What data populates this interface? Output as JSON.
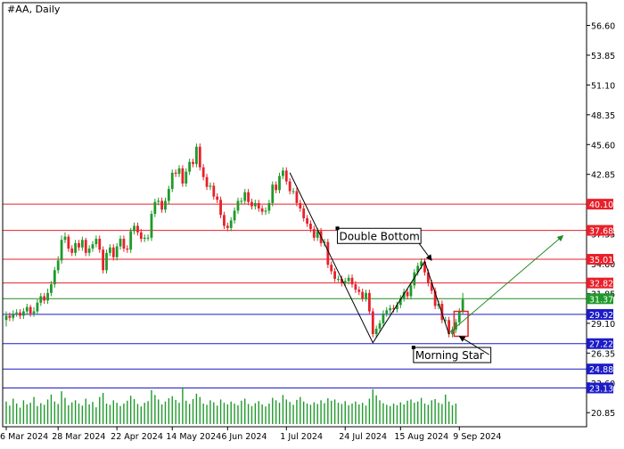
{
  "chart_data": {
    "type": "candlestick",
    "title": "#AA, Daily",
    "symbol": "#AA",
    "timeframe": "Daily",
    "ylim": [
      19.55,
      58.7
    ],
    "price_ticks": [
      "56.60",
      "53.85",
      "51.10",
      "48.35",
      "45.60",
      "42.85",
      "37.35",
      "34.60",
      "31.85",
      "29.10",
      "26.35",
      "23.60",
      "20.85"
    ],
    "date_ticks": [
      {
        "label": "6 Mar 2024",
        "bar": 0
      },
      {
        "label": "28 Mar 2024",
        "bar": 15
      },
      {
        "label": "22 Apr 2024",
        "bar": 32
      },
      {
        "label": "14 May 2024",
        "bar": 48
      },
      {
        "label": "6 Jun 2024",
        "bar": 64
      },
      {
        "label": "1 Jul 2024",
        "bar": 81
      },
      {
        "label": "24 Jul 2024",
        "bar": 98
      },
      {
        "label": "15 Aug 2024",
        "bar": 114
      },
      {
        "label": "9 Sep 2024",
        "bar": 131
      }
    ],
    "levels": [
      {
        "price": 40.1,
        "label": "40.10",
        "color": "#e8202a",
        "badge": "#e8202a"
      },
      {
        "price": 37.68,
        "label": "37.68",
        "color": "#e8202a",
        "badge": "#e8202a"
      },
      {
        "price": 35.01,
        "label": "35.01",
        "color": "#e8202a",
        "badge": "#e8202a"
      },
      {
        "price": 32.82,
        "label": "32.82",
        "color": "#e8202a",
        "badge": "#e8202a"
      },
      {
        "price": 31.37,
        "label": "31.37",
        "color": "#228b22",
        "badge": "#1f9a2a"
      },
      {
        "price": 29.92,
        "label": "29.92",
        "color": "#1c1cc8",
        "badge": "#1c1cc8"
      },
      {
        "price": 27.22,
        "label": "27.22",
        "color": "#1c1cc8",
        "badge": "#1c1cc8"
      },
      {
        "price": 24.88,
        "label": "24.88",
        "color": "#1c1cc8",
        "badge": "#1c1cc8"
      },
      {
        "price": 23.13,
        "label": "23.13",
        "color": "#1c1cc8",
        "badge": "#1c1cc8"
      }
    ],
    "pattern_line": [
      {
        "bar": 82,
        "price": 43.0
      },
      {
        "bar": 106,
        "price": 27.3
      },
      {
        "bar": 121,
        "price": 34.8
      },
      {
        "bar": 128,
        "price": 28.1
      }
    ],
    "projection": {
      "from": {
        "bar": 128,
        "price": 28.2
      },
      "to": {
        "bar": 161,
        "price": 37.2
      },
      "color": "#228b22"
    },
    "annotations": [
      {
        "text": "Double Bottom",
        "bar": 96,
        "price": 36.8,
        "arrow_to": {
          "bar": 123,
          "price": 34.9
        }
      },
      {
        "text": "Morning Star",
        "bar": 118,
        "price": 25.8,
        "arrow_to": {
          "bar": 131,
          "price": 27.9
        }
      }
    ],
    "highlight_box": {
      "bar_from": 130,
      "bar_to": 133,
      "price_low": 27.9,
      "price_high": 30.2,
      "color": "#e8202a"
    },
    "colors": {
      "bull": "#1f9a2a",
      "bear": "#e8202a",
      "volume": "#1f9a2a",
      "text": "#000000"
    },
    "series": [
      {
        "name": "price",
        "open": [
          29.4,
          29.8,
          29.6,
          30.0,
          30.1,
          29.8,
          30.2,
          30.6,
          30.0,
          30.2,
          31.0,
          31.6,
          31.2,
          31.9,
          32.7,
          34.0,
          34.9,
          36.8,
          37.1,
          36.0,
          35.6,
          36.5,
          36.1,
          36.8,
          35.6,
          36.0,
          36.4,
          36.9,
          35.9,
          34.0,
          35.6,
          36.1,
          35.2,
          36.2,
          36.9,
          36.0,
          35.9,
          37.6,
          38.1,
          37.5,
          36.9,
          37.0,
          37.0,
          39.2,
          40.3,
          40.4,
          39.6,
          40.4,
          41.5,
          43.0,
          42.9,
          43.4,
          42.0,
          43.1,
          44.0,
          43.8,
          45.4,
          43.5,
          42.6,
          41.7,
          41.8,
          40.8,
          40.5,
          39.1,
          38.1,
          37.9,
          38.6,
          39.5,
          40.4,
          40.4,
          41.2,
          40.3,
          39.9,
          40.2,
          39.7,
          39.4,
          39.5,
          40.2,
          41.9,
          41.4,
          42.7,
          43.2,
          42.2,
          41.3,
          41.3,
          40.2,
          39.7,
          38.8,
          38.3,
          37.8,
          37.0,
          37.6,
          36.5,
          36.6,
          34.5,
          33.9,
          33.2,
          33.2,
          32.8,
          33.0,
          33.3,
          32.7,
          32.2,
          32.0,
          31.4,
          31.9,
          30.2,
          28.1,
          28.6,
          29.1,
          30.0,
          30.3,
          30.5,
          30.4,
          30.8,
          31.4,
          32.0,
          31.6,
          32.6,
          33.8,
          34.4,
          34.8,
          33.8,
          32.8,
          32.1,
          30.7,
          30.9,
          29.4,
          29.4,
          28.1,
          28.5,
          29.2,
          30.2
        ],
        "close": [
          29.8,
          29.6,
          30.0,
          30.1,
          29.8,
          30.2,
          30.6,
          30.0,
          30.2,
          31.0,
          31.6,
          31.2,
          31.9,
          32.7,
          34.0,
          34.9,
          36.8,
          37.1,
          36.0,
          35.6,
          36.5,
          36.1,
          36.8,
          35.6,
          36.0,
          36.4,
          36.9,
          35.9,
          34.0,
          35.6,
          36.1,
          35.2,
          36.2,
          36.9,
          36.0,
          35.9,
          37.6,
          38.1,
          37.5,
          36.9,
          37.0,
          37.0,
          39.2,
          40.3,
          40.4,
          39.6,
          40.4,
          41.5,
          43.0,
          42.9,
          43.4,
          42.0,
          43.1,
          44.0,
          43.8,
          45.4,
          43.5,
          42.6,
          41.7,
          41.8,
          40.8,
          40.5,
          39.1,
          38.1,
          37.9,
          38.6,
          39.5,
          40.4,
          40.4,
          41.2,
          40.3,
          39.9,
          40.2,
          39.7,
          39.4,
          39.5,
          40.2,
          41.9,
          41.4,
          42.7,
          43.2,
          42.2,
          41.3,
          41.3,
          40.2,
          39.7,
          38.8,
          38.3,
          37.8,
          37.0,
          37.6,
          36.5,
          36.6,
          34.5,
          33.9,
          33.2,
          33.2,
          32.8,
          33.0,
          33.3,
          32.7,
          32.2,
          32.0,
          31.4,
          31.9,
          30.2,
          28.1,
          28.6,
          29.1,
          30.0,
          30.3,
          30.5,
          30.4,
          30.8,
          31.4,
          32.0,
          31.6,
          32.6,
          33.8,
          34.4,
          34.8,
          33.8,
          32.8,
          32.1,
          30.7,
          30.9,
          29.4,
          29.4,
          28.1,
          28.5,
          29.2,
          30.2,
          31.3
        ],
        "high": [
          30.2,
          30.1,
          30.3,
          30.4,
          30.4,
          30.5,
          30.9,
          30.8,
          30.6,
          31.3,
          31.9,
          31.9,
          32.3,
          33.0,
          34.3,
          35.3,
          37.2,
          37.5,
          37.3,
          36.3,
          36.8,
          36.8,
          37.1,
          37.0,
          36.3,
          36.7,
          37.2,
          37.2,
          36.2,
          35.9,
          36.4,
          36.4,
          36.5,
          37.2,
          37.2,
          36.3,
          37.9,
          38.4,
          38.4,
          37.8,
          37.3,
          37.3,
          39.5,
          40.6,
          40.7,
          40.7,
          40.7,
          41.8,
          43.3,
          43.3,
          43.7,
          43.7,
          43.4,
          44.3,
          44.3,
          45.7,
          45.7,
          43.8,
          42.9,
          42.1,
          42.1,
          41.1,
          40.8,
          39.4,
          38.4,
          38.9,
          39.8,
          40.7,
          40.7,
          41.5,
          41.5,
          40.6,
          40.5,
          40.5,
          40.0,
          39.8,
          40.5,
          42.2,
          42.2,
          43.0,
          43.5,
          43.5,
          42.5,
          41.6,
          41.6,
          40.5,
          40.0,
          39.1,
          38.6,
          38.1,
          37.9,
          37.9,
          36.9,
          36.9,
          34.8,
          34.2,
          33.5,
          33.5,
          33.3,
          33.6,
          33.6,
          33.0,
          32.5,
          32.3,
          32.2,
          32.2,
          30.5,
          28.9,
          29.4,
          30.3,
          30.6,
          30.8,
          30.8,
          31.1,
          31.7,
          32.3,
          32.3,
          32.9,
          34.1,
          34.7,
          35.1,
          35.1,
          34.1,
          33.1,
          32.4,
          31.2,
          31.2,
          29.7,
          29.7,
          28.8,
          29.5,
          30.5,
          31.9
        ],
        "low": [
          28.8,
          29.3,
          29.3,
          29.7,
          29.5,
          29.5,
          29.9,
          29.7,
          29.7,
          29.9,
          30.7,
          30.9,
          30.9,
          31.6,
          32.4,
          33.7,
          34.6,
          36.5,
          35.7,
          35.3,
          35.3,
          35.8,
          35.8,
          35.3,
          35.3,
          35.7,
          36.1,
          35.6,
          33.7,
          33.7,
          35.3,
          34.9,
          34.9,
          35.9,
          35.7,
          35.6,
          35.6,
          37.3,
          37.2,
          36.6,
          36.6,
          36.7,
          36.7,
          38.9,
          40.0,
          39.3,
          39.3,
          40.1,
          41.2,
          42.6,
          42.6,
          41.7,
          41.7,
          42.8,
          43.5,
          43.5,
          43.2,
          42.3,
          41.4,
          41.4,
          40.5,
          40.2,
          38.8,
          37.8,
          37.6,
          37.6,
          38.3,
          39.2,
          40.1,
          40.1,
          40.0,
          39.6,
          39.6,
          39.4,
          39.1,
          39.1,
          39.2,
          39.9,
          41.1,
          41.1,
          42.4,
          41.9,
          41.0,
          41.0,
          39.9,
          39.4,
          38.5,
          38.0,
          37.5,
          36.7,
          36.7,
          36.2,
          36.2,
          34.2,
          33.6,
          32.9,
          32.9,
          32.5,
          32.5,
          32.7,
          32.4,
          31.9,
          31.7,
          31.1,
          31.1,
          29.9,
          27.8,
          27.8,
          28.3,
          28.8,
          29.7,
          30.0,
          30.1,
          30.1,
          30.5,
          31.1,
          31.3,
          31.3,
          32.3,
          33.5,
          34.1,
          33.5,
          32.5,
          31.8,
          30.4,
          30.4,
          29.1,
          29.1,
          27.8,
          27.8,
          28.2,
          28.9,
          29.9
        ]
      },
      {
        "name": "volume",
        "values": [
          0.55,
          0.45,
          0.62,
          0.5,
          0.4,
          0.58,
          0.48,
          0.52,
          0.66,
          0.44,
          0.51,
          0.47,
          0.6,
          0.72,
          0.55,
          0.49,
          0.8,
          0.64,
          0.46,
          0.53,
          0.58,
          0.5,
          0.45,
          0.62,
          0.48,
          0.54,
          0.41,
          0.66,
          0.76,
          0.5,
          0.47,
          0.58,
          0.52,
          0.44,
          0.5,
          0.57,
          0.69,
          0.61,
          0.49,
          0.43,
          0.52,
          0.56,
          0.83,
          0.71,
          0.6,
          0.48,
          0.55,
          0.63,
          0.68,
          0.59,
          0.52,
          0.9,
          0.57,
          0.49,
          0.61,
          0.74,
          0.66,
          0.5,
          0.47,
          0.58,
          0.53,
          0.45,
          0.6,
          0.52,
          0.48,
          0.55,
          0.5,
          0.46,
          0.57,
          0.62,
          0.49,
          0.44,
          0.51,
          0.56,
          0.48,
          0.43,
          0.5,
          0.64,
          0.58,
          0.52,
          0.71,
          0.6,
          0.54,
          0.47,
          0.59,
          0.66,
          0.55,
          0.5,
          0.47,
          0.53,
          0.49,
          0.58,
          0.51,
          0.63,
          0.57,
          0.6,
          0.52,
          0.49,
          0.56,
          0.46,
          0.5,
          0.55,
          0.48,
          0.52,
          0.45,
          0.62,
          0.85,
          0.7,
          0.58,
          0.51,
          0.47,
          0.44,
          0.5,
          0.46,
          0.53,
          0.48,
          0.57,
          0.6,
          0.52,
          0.55,
          0.64,
          0.5,
          0.47,
          0.58,
          0.61,
          0.52,
          0.49,
          0.72,
          0.55,
          0.46,
          0.5
        ]
      }
    ]
  }
}
